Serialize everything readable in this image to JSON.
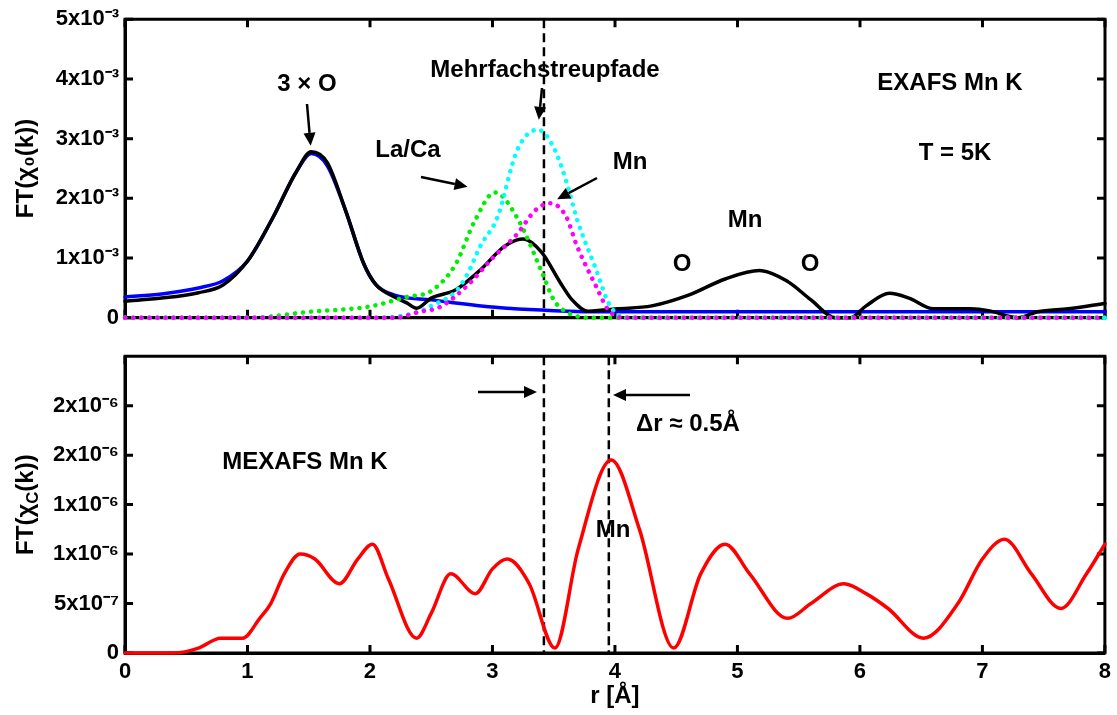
{
  "chart_data": [
    {
      "type": "line",
      "ylabel": "FT(χ₀(k))",
      "xlim": [
        0,
        8
      ],
      "xticks": [
        0,
        1,
        2,
        3,
        4,
        5,
        6,
        7,
        8
      ],
      "tick_labels": "y",
      "ylim": [
        0,
        0.005
      ],
      "yticks": [
        0,
        {
          "value": 0.001,
          "label": "1x10⁻³"
        },
        {
          "value": 0.002,
          "label": "2x10⁻³"
        },
        {
          "value": 0.003,
          "label": "3x10⁻³"
        },
        {
          "value": 0.004,
          "label": "4x10⁻³"
        },
        {
          "value": 0.005,
          "label": "5x10⁻³"
        }
      ],
      "grid": false,
      "legend": false,
      "marker": "none",
      "series": [
        {
          "color": "#000000",
          "line_style": "solid",
          "x": [
            0,
            0.3,
            0.6,
            0.8,
            1.0,
            1.2,
            1.4,
            1.52,
            1.65,
            1.8,
            1.95,
            2.05,
            2.2,
            2.3,
            2.38,
            2.5,
            2.7,
            2.9,
            3.1,
            3.25,
            3.4,
            3.55,
            3.65,
            3.78,
            3.9,
            4.02,
            4.3,
            4.6,
            4.9,
            5.18,
            5.4,
            5.6,
            5.8,
            5.92,
            6.05,
            6.24,
            6.4,
            6.6,
            6.9,
            7.05,
            7.29,
            7.45,
            7.7,
            8.0
          ],
          "values": [
            0.00028,
            0.00033,
            0.00042,
            0.00055,
            0.00095,
            0.00165,
            0.00245,
            0.00278,
            0.0026,
            0.0018,
            0.0009,
            0.00055,
            0.00035,
            0.00025,
            0.00016,
            0.00033,
            0.00047,
            0.0008,
            0.0012,
            0.00132,
            0.0011,
            0.0006,
            0.0003,
            0.00011,
            0.00013,
            0.00015,
            0.0002,
            0.00038,
            0.00065,
            0.00079,
            0.00062,
            0.0003,
            0,
            0,
            0.0002,
            0.00041,
            0.00033,
            0.00015,
            0.00015,
            0.00012,
            0,
            0.0001,
            0.00015,
            0.00024
          ]
        },
        {
          "color": "#0000ff",
          "line_style": "solid",
          "x": [
            0,
            0.3,
            0.6,
            0.8,
            1.0,
            1.2,
            1.4,
            1.52,
            1.65,
            1.8,
            1.95,
            2.05,
            2.2,
            2.5,
            3.0,
            3.5,
            4.0,
            5.0,
            6.0,
            7.0,
            8.0
          ],
          "values": [
            0.00035,
            0.0004,
            0.0005,
            0.00062,
            0.00095,
            0.00165,
            0.00245,
            0.00275,
            0.00255,
            0.0018,
            0.0009,
            0.00055,
            0.00038,
            0.0003,
            0.00018,
            0.00012,
            0.0001,
            0.0001,
            0.0001,
            0.0001,
            0.0001
          ]
        },
        {
          "color": "#00ee00",
          "line_style": "dotted",
          "x": [
            0,
            1.0,
            1.5,
            2.0,
            2.3,
            2.5,
            2.7,
            2.85,
            3.02,
            3.2,
            3.4,
            3.5,
            3.6,
            3.8,
            8.0
          ],
          "values": [
            0,
            0,
            0.0001,
            0.00019,
            0.00035,
            0.00045,
            0.0009,
            0.0016,
            0.0021,
            0.00168,
            0.00078,
            0.0003,
            0.0001,
            0,
            0
          ]
        },
        {
          "color": "#00ffff",
          "line_style": "dotted",
          "x": [
            0,
            2.0,
            2.4,
            2.5,
            2.7,
            2.8,
            2.9,
            3.04,
            3.2,
            3.37,
            3.5,
            3.6,
            3.69,
            3.84,
            3.96,
            4.1,
            8.0
          ],
          "values": [
            0,
            0,
            0.0001,
            0.0002,
            0.00044,
            0.00075,
            0.0012,
            0.00168,
            0.0028,
            0.00315,
            0.00285,
            0.0023,
            0.00165,
            0.00084,
            0.0002,
            0,
            0
          ]
        },
        {
          "color": "#ff00ff",
          "line_style": "dotted",
          "x": [
            0,
            2.2,
            2.4,
            2.57,
            2.8,
            3.0,
            3.2,
            3.35,
            3.47,
            3.6,
            3.69,
            3.84,
            3.95,
            4.1,
            8.0
          ],
          "values": [
            0,
            0,
            0.0001,
            0.00018,
            0.00055,
            0.001,
            0.0014,
            0.0018,
            0.00192,
            0.0017,
            0.0012,
            0.00055,
            0.00012,
            0,
            0
          ]
        }
      ],
      "ref_lines": [
        {
          "axis": "x",
          "value": 3.42,
          "line_style": "dashed",
          "color": "#000000"
        }
      ],
      "annotations": [
        {
          "text": "3 × O",
          "x": 1.52,
          "y": 0.00278
        },
        {
          "text": "Mehrfachstreupfade",
          "x": 3.37,
          "y": 0.00315
        },
        {
          "text": "La/Ca",
          "x": 3.02,
          "y": 0.0021
        },
        {
          "text": "Mn",
          "x": 3.47,
          "y": 0.00192
        },
        "EXAFS Mn K",
        "T = 5K",
        "Mn",
        "O",
        "O"
      ]
    },
    {
      "type": "line",
      "xlabel": "r [Å]",
      "ylabel": "FT(χ$_{C}$(k))",
      "xlim": [
        0,
        8
      ],
      "xticks": [
        0,
        1,
        2,
        3,
        4,
        5,
        6,
        7,
        8
      ],
      "ylim": [
        0,
        3e-06
      ],
      "yticks": [
        0,
        {
          "value": 5e-07,
          "label": "5x10⁻⁷"
        },
        {
          "value": 1e-06,
          "label": "1x10⁻⁶"
        },
        {
          "value": 1.5e-06,
          "label": "1x10⁻⁶"
        },
        {
          "value": 2e-06,
          "label": "2x10⁻⁶"
        },
        {
          "value": 2.5e-06,
          "label": "2x10⁻⁶"
        }
      ],
      "grid": false,
      "legend": false,
      "marker": "none",
      "series": [
        {
          "color": "#ff0000",
          "line_style": "solid",
          "x": [
            0,
            0.4,
            0.6,
            0.78,
            0.96,
            1.1,
            1.19,
            1.3,
            1.43,
            1.55,
            1.75,
            1.9,
            2.02,
            2.15,
            2.38,
            2.5,
            2.66,
            2.86,
            3.0,
            3.12,
            3.3,
            3.51,
            3.7,
            3.97,
            4.2,
            4.48,
            4.7,
            4.9,
            5.1,
            5.41,
            5.6,
            5.87,
            6.05,
            6.23,
            6.52,
            6.8,
            7.0,
            7.18,
            7.4,
            7.64,
            7.85,
            8.0
          ],
          "values": [
            0,
            0,
            5e-08,
            1.5e-07,
            1.5e-07,
            3.5e-07,
            5e-07,
            8e-07,
            1e-06,
            9.5e-07,
            7e-07,
            9.5e-07,
            1.1e-06,
            7.5e-07,
            1.5e-07,
            4e-07,
            8e-07,
            6e-07,
            8.5e-07,
            9.5e-07,
            7e-07,
            5e-08,
            1.05e-06,
            1.95e-06,
            1.25e-06,
            5e-08,
            8e-07,
            1.1e-06,
            8e-07,
            3.5e-07,
            5e-07,
            7e-07,
            6e-07,
            4.5e-07,
            1.5e-07,
            5e-07,
            9.5e-07,
            1.15e-06,
            8e-07,
            4.5e-07,
            8e-07,
            1.1e-06
          ]
        }
      ],
      "ref_lines": [
        {
          "axis": "x",
          "value": 3.42,
          "line_style": "dashed",
          "color": "#000000"
        },
        {
          "axis": "x",
          "value": 3.95,
          "line_style": "dashed",
          "color": "#000000"
        }
      ],
      "annotations": [
        "MEXAFS Mn K",
        "Δr ≈ 0.5Å",
        "Mn"
      ]
    }
  ]
}
